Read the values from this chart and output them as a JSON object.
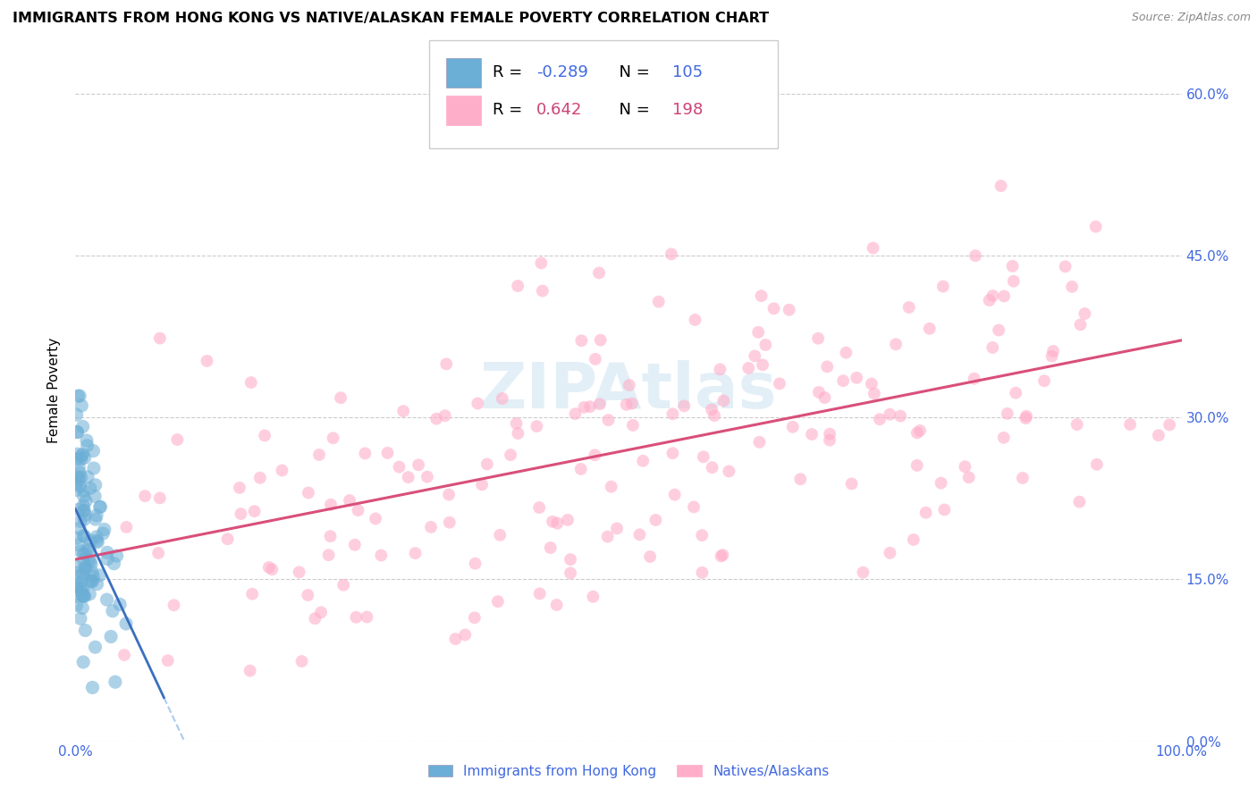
{
  "title": "IMMIGRANTS FROM HONG KONG VS NATIVE/ALASKAN FEMALE POVERTY CORRELATION CHART",
  "source": "Source: ZipAtlas.com",
  "ylabel": "Female Poverty",
  "xlim": [
    0.0,
    1.0
  ],
  "ylim": [
    0.0,
    0.65
  ],
  "ytick_labels": [
    "0.0%",
    "15.0%",
    "30.0%",
    "45.0%",
    "60.0%"
  ],
  "ytick_values": [
    0.0,
    0.15,
    0.3,
    0.45,
    0.6
  ],
  "xtick_labels": [
    "0.0%",
    "100.0%"
  ],
  "xtick_values": [
    0.0,
    1.0
  ],
  "legend_label1": "Immigrants from Hong Kong",
  "legend_label2": "Natives/Alaskans",
  "r1": "-0.289",
  "n1": "105",
  "r2": "0.642",
  "n2": "198",
  "color_blue": "#6baed6",
  "color_pink": "#ffaec9",
  "color_blue_text": "#4169E1",
  "color_pink_text": "#cc4477",
  "line_blue_solid": "#3a6fbf",
  "line_blue_dash": "#aaccee",
  "line_pink": "#d94f7a",
  "background": "#ffffff",
  "watermark_text": "ZIPAtlas",
  "watermark_color": "#c8e0f0",
  "watermark_alpha": 0.5,
  "title_fontsize": 11.5,
  "source_fontsize": 9,
  "tick_fontsize": 11,
  "legend_fontsize": 13,
  "dot_size_blue": 120,
  "dot_size_pink": 100,
  "dot_alpha_blue": 0.55,
  "dot_alpha_pink": 0.6
}
